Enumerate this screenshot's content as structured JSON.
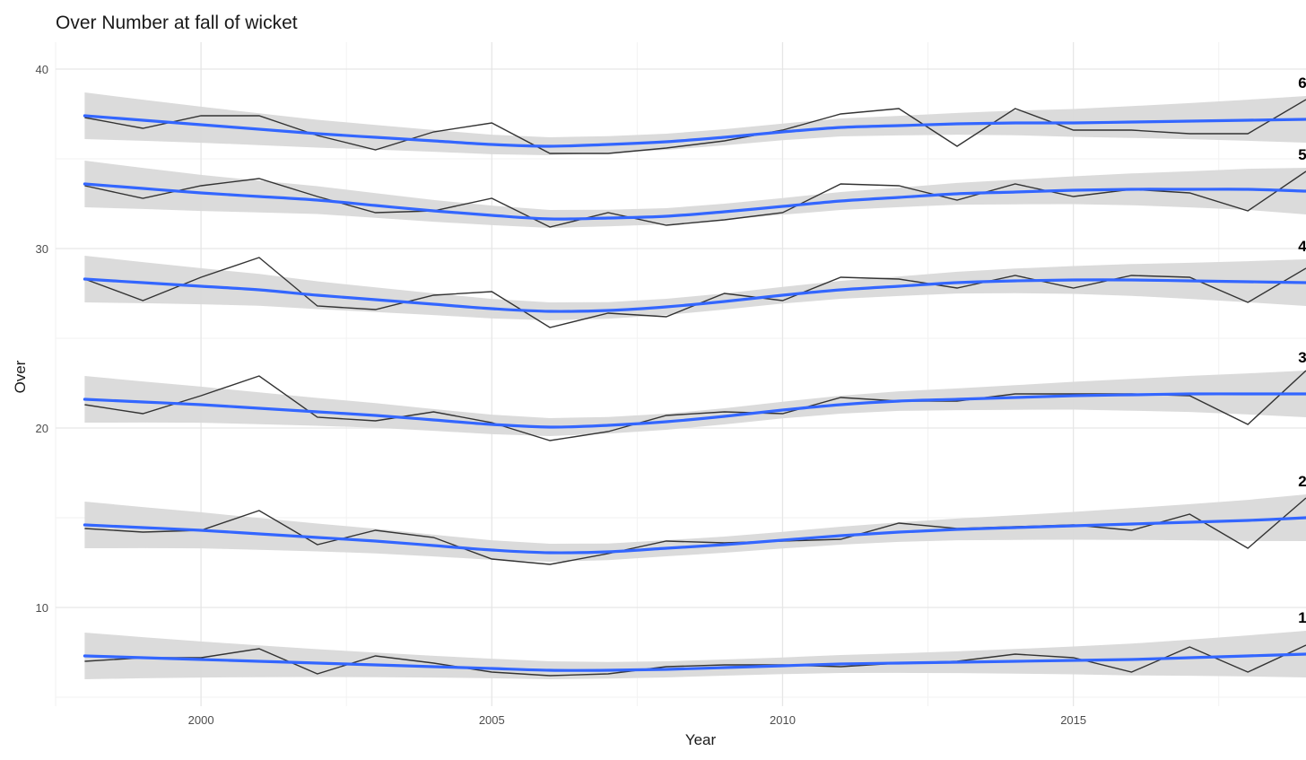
{
  "chart_data": {
    "type": "line",
    "title": "Over Number at fall of wicket",
    "xlabel": "Year",
    "ylabel": "Over",
    "xlim": [
      1997.5,
      2019
    ],
    "ylim": [
      4.5,
      41.5
    ],
    "x_ticks": [
      2000,
      2005,
      2010,
      2015
    ],
    "x_tick_labels": [
      "2000",
      "2005",
      "2010",
      "2015"
    ],
    "y_ticks": [
      10,
      20,
      30,
      40
    ],
    "y_tick_labels": [
      "10",
      "20",
      "30",
      "40"
    ],
    "grid": true,
    "smooth_color": "#3366FF",
    "band_color": "#D9D9D9",
    "line_color": "#333333",
    "x": [
      1998,
      1999,
      2000,
      2001,
      2002,
      2003,
      2004,
      2005,
      2006,
      2007,
      2008,
      2009,
      2010,
      2011,
      2012,
      2013,
      2014,
      2015,
      2016,
      2017,
      2018,
      2019
    ],
    "series": [
      {
        "name": "1",
        "values": [
          7.0,
          7.2,
          7.2,
          7.7,
          6.3,
          7.3,
          6.9,
          6.4,
          6.2,
          6.3,
          6.7,
          6.8,
          6.8,
          6.7,
          6.9,
          7.0,
          7.4,
          7.2,
          6.4,
          7.8,
          6.4,
          7.9
        ],
        "smooth": [
          7.3,
          7.2,
          7.1,
          7.0,
          6.9,
          6.8,
          6.7,
          6.6,
          6.5,
          6.5,
          6.55,
          6.65,
          6.75,
          6.85,
          6.9,
          6.95,
          7.0,
          7.05,
          7.1,
          7.2,
          7.3,
          7.4
        ]
      },
      {
        "name": "2",
        "values": [
          14.4,
          14.2,
          14.3,
          15.4,
          13.5,
          14.3,
          13.9,
          12.7,
          12.4,
          13.0,
          13.7,
          13.6,
          13.7,
          13.8,
          14.7,
          14.4,
          14.5,
          14.6,
          14.3,
          15.2,
          13.3,
          16.1
        ],
        "smooth": [
          14.6,
          14.45,
          14.3,
          14.1,
          13.9,
          13.7,
          13.45,
          13.2,
          13.05,
          13.1,
          13.3,
          13.5,
          13.75,
          14.0,
          14.2,
          14.35,
          14.45,
          14.55,
          14.65,
          14.75,
          14.85,
          15.0
        ]
      },
      {
        "name": "3",
        "values": [
          21.3,
          20.8,
          21.8,
          22.9,
          20.6,
          20.4,
          20.9,
          20.3,
          19.3,
          19.8,
          20.7,
          20.9,
          20.8,
          21.7,
          21.5,
          21.5,
          21.9,
          21.9,
          21.9,
          21.8,
          20.2,
          23.2
        ],
        "smooth": [
          21.6,
          21.45,
          21.3,
          21.1,
          20.9,
          20.7,
          20.45,
          20.2,
          20.05,
          20.15,
          20.35,
          20.65,
          21.0,
          21.3,
          21.5,
          21.6,
          21.7,
          21.8,
          21.85,
          21.9,
          21.9,
          21.9
        ]
      },
      {
        "name": "4",
        "values": [
          28.3,
          27.1,
          28.4,
          29.5,
          26.8,
          26.6,
          27.4,
          27.6,
          25.6,
          26.4,
          26.2,
          27.5,
          27.1,
          28.4,
          28.3,
          27.8,
          28.5,
          27.8,
          28.5,
          28.4,
          27.0,
          28.9
        ],
        "smooth": [
          28.3,
          28.1,
          27.9,
          27.7,
          27.4,
          27.15,
          26.9,
          26.65,
          26.5,
          26.55,
          26.75,
          27.05,
          27.4,
          27.7,
          27.9,
          28.1,
          28.2,
          28.25,
          28.25,
          28.2,
          28.15,
          28.1
        ]
      },
      {
        "name": "5",
        "values": [
          33.5,
          32.8,
          33.5,
          33.9,
          32.9,
          32.0,
          32.1,
          32.8,
          31.2,
          32.0,
          31.3,
          31.6,
          32.0,
          33.6,
          33.5,
          32.7,
          33.6,
          32.9,
          33.3,
          33.1,
          32.1,
          34.3
        ],
        "smooth": [
          33.6,
          33.35,
          33.1,
          32.9,
          32.7,
          32.4,
          32.1,
          31.85,
          31.65,
          31.7,
          31.8,
          32.05,
          32.35,
          32.65,
          32.85,
          33.05,
          33.15,
          33.25,
          33.3,
          33.3,
          33.3,
          33.2
        ]
      },
      {
        "name": "6",
        "values": [
          37.3,
          36.7,
          37.4,
          37.4,
          36.3,
          35.5,
          36.5,
          37.0,
          35.3,
          35.3,
          35.6,
          36.0,
          36.6,
          37.5,
          37.8,
          35.7,
          37.8,
          36.6,
          36.6,
          36.4,
          36.4,
          38.3
        ],
        "smooth": [
          37.4,
          37.15,
          36.9,
          36.65,
          36.4,
          36.2,
          36.0,
          35.8,
          35.7,
          35.8,
          35.95,
          36.2,
          36.5,
          36.75,
          36.85,
          36.95,
          37.0,
          37.0,
          37.05,
          37.1,
          37.15,
          37.2
        ]
      }
    ]
  }
}
